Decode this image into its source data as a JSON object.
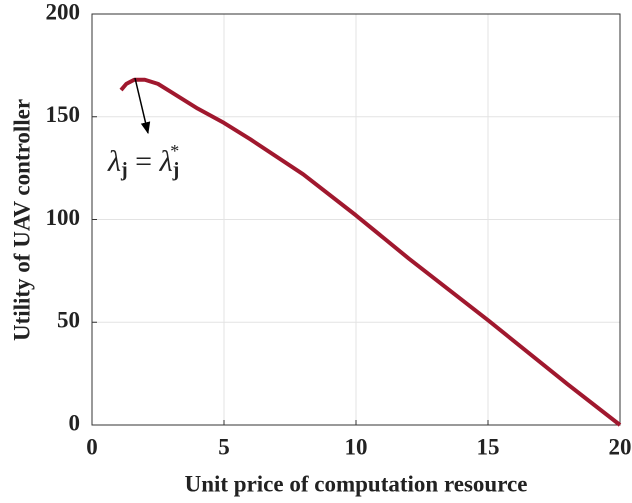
{
  "chart_data": {
    "type": "line",
    "x_label": "Unit price of computation resource",
    "y_label": "Utility of UAV controller",
    "annotation": [
      "λ",
      "j",
      " = ",
      "λ",
      "j",
      "*"
    ],
    "x": [
      1.1,
      1.3,
      1.6,
      2,
      2.5,
      3,
      4,
      5,
      6,
      8,
      10,
      12,
      15,
      18,
      20
    ],
    "series": [
      {
        "color": "#a0182e",
        "values": [
          163,
          166,
          168,
          168,
          166,
          162,
          154,
          147,
          139,
          122,
          102,
          81,
          51,
          20,
          0
        ]
      }
    ],
    "xlim": [
      0,
      20
    ],
    "ylim": [
      0,
      200
    ],
    "xticks": [
      0,
      5,
      10,
      15,
      20
    ],
    "yticks": [
      0,
      50,
      100,
      150,
      200
    ],
    "grid": true
  }
}
